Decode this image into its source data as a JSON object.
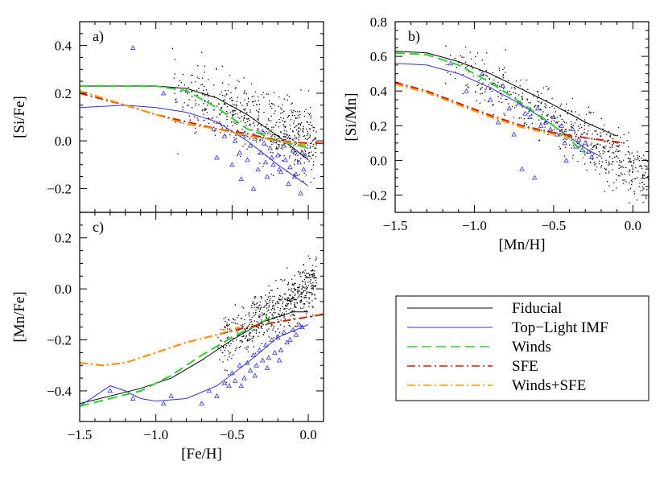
{
  "chart_data": {
    "type": "line",
    "legend": {
      "placement": "bottom-right",
      "entries": [
        {
          "key": "fiducial",
          "label": "Fiducial",
          "color": "#000000",
          "dash": "solid"
        },
        {
          "key": "toplight",
          "label": "Top−Light IMF",
          "color": "#3333dd",
          "dash": "solid"
        },
        {
          "key": "winds",
          "label": "Winds",
          "color": "#33cc33",
          "dash": "long-dash"
        },
        {
          "key": "sfe",
          "label": "SFE",
          "color": "#cc2200",
          "dash": "dash-dot"
        },
        {
          "key": "windssfe",
          "label": "Winds+SFE",
          "color": "#ff9900",
          "dash": "dash-dot"
        }
      ]
    },
    "panels": [
      {
        "id": "a",
        "label": "a)",
        "xlabel": "",
        "ylabel": "[Si/Fe]",
        "xlim": [
          -1.5,
          0.1
        ],
        "ylim": [
          -0.3,
          0.5
        ],
        "xticks": [
          -1.5,
          -1.0,
          -0.5,
          0.0
        ],
        "xtick_labels": [
          "",
          "",
          "",
          ""
        ],
        "yticks": [
          -0.2,
          0.0,
          0.2,
          0.4
        ],
        "ytick_labels": [
          "−0.2",
          "0.0",
          "0.2",
          "0.4"
        ],
        "series": {
          "fiducial": {
            "x": [
              -1.5,
              -1.2,
              -1.0,
              -0.8,
              -0.6,
              -0.4,
              -0.2,
              0.0
            ],
            "y": [
              0.23,
              0.23,
              0.23,
              0.22,
              0.18,
              0.11,
              0.02,
              -0.08
            ]
          },
          "toplight": {
            "x": [
              -1.5,
              -1.2,
              -1.0,
              -0.8,
              -0.6,
              -0.4,
              -0.2,
              0.0
            ],
            "y": [
              0.14,
              0.15,
              0.14,
              0.12,
              0.08,
              0.0,
              -0.1,
              -0.19
            ]
          },
          "winds": {
            "x": [
              -1.5,
              -1.2,
              -1.0,
              -0.8,
              -0.6,
              -0.4,
              -0.2,
              0.0
            ],
            "y": [
              0.23,
              0.23,
              0.23,
              0.21,
              0.14,
              0.05,
              0.0,
              -0.03
            ]
          },
          "sfe": {
            "x": [
              -1.5,
              -1.2,
              -1.0,
              -0.8,
              -0.6,
              -0.4,
              -0.2,
              0.0,
              0.1
            ],
            "y": [
              0.2,
              0.15,
              0.11,
              0.08,
              0.05,
              0.03,
              0.0,
              -0.01,
              -0.01
            ]
          },
          "windssfe": {
            "x": [
              -1.5,
              -1.2,
              -1.0,
              -0.8,
              -0.6,
              -0.4,
              -0.2,
              0.0
            ],
            "y": [
              0.21,
              0.15,
              0.11,
              0.07,
              0.05,
              0.02,
              0.0,
              -0.02
            ]
          }
        },
        "dwarf_points": {
          "x": [
            -1.15,
            -0.95,
            -0.62,
            -0.55,
            -0.48,
            -0.45,
            -0.42,
            -0.4,
            -0.38,
            -0.35,
            -0.33,
            -0.31,
            -0.3,
            -0.28,
            -0.27,
            -0.25,
            -0.23,
            -0.22,
            -0.2,
            -0.18,
            -0.16,
            -0.15,
            -0.13,
            -0.12,
            -0.1,
            -0.08,
            -0.06,
            -0.05,
            -0.03,
            -0.02,
            -0.5,
            -0.44,
            -0.36,
            -0.29,
            -0.24,
            -0.19,
            -0.14,
            -0.09,
            -0.04,
            -0.6
          ],
          "y": [
            0.39,
            0.2,
            0.05,
            0.02,
            0.0,
            -0.05,
            0.03,
            -0.08,
            -0.02,
            0.01,
            -0.12,
            -0.05,
            0.04,
            -0.09,
            -0.15,
            -0.03,
            -0.1,
            0.0,
            -0.06,
            -0.13,
            -0.02,
            -0.08,
            -0.18,
            -0.11,
            -0.04,
            -0.14,
            -0.09,
            -0.22,
            -0.12,
            -0.06,
            -0.1,
            -0.16,
            -0.2,
            -0.01,
            -0.07,
            -0.12,
            0.02,
            -0.15,
            -0.05,
            -0.07
          ]
        },
        "field_points": {
          "n": 600,
          "x_range": [
            -0.9,
            0.05
          ],
          "center_y": [
            0.2,
            0.0
          ],
          "spread": 0.07
        }
      },
      {
        "id": "b",
        "label": "b)",
        "xlabel": "[Mn/H]",
        "ylabel": "[Si/Mn]",
        "xlim": [
          -1.5,
          0.1
        ],
        "ylim": [
          -0.3,
          0.8
        ],
        "xticks": [
          -1.5,
          -1.0,
          -0.5,
          0.0
        ],
        "xtick_labels": [
          "−1.5",
          "−1.0",
          "−0.5",
          "0.0"
        ],
        "yticks": [
          -0.2,
          0.0,
          0.2,
          0.4,
          0.6,
          0.8
        ],
        "ytick_labels": [
          "−0.2",
          "0.0",
          "0.2",
          "0.4",
          "0.6",
          "0.8"
        ],
        "series": {
          "fiducial": {
            "x": [
              -1.5,
              -1.3,
              -1.1,
              -0.9,
              -0.7,
              -0.5,
              -0.3,
              -0.1
            ],
            "y": [
              0.63,
              0.62,
              0.57,
              0.5,
              0.41,
              0.32,
              0.22,
              0.14
            ]
          },
          "toplight": {
            "x": [
              -1.5,
              -1.3,
              -1.1,
              -0.9,
              -0.7,
              -0.5,
              -0.3,
              -0.2
            ],
            "y": [
              0.56,
              0.55,
              0.5,
              0.42,
              0.32,
              0.2,
              0.07,
              0.02
            ]
          },
          "winds": {
            "x": [
              -1.5,
              -1.3,
              -1.1,
              -0.9,
              -0.7,
              -0.5,
              -0.4,
              -0.3
            ],
            "y": [
              0.62,
              0.61,
              0.55,
              0.45,
              0.33,
              0.2,
              0.12,
              0.04
            ]
          },
          "sfe": {
            "x": [
              -1.5,
              -1.3,
              -1.1,
              -0.9,
              -0.7,
              -0.5,
              -0.3,
              -0.05
            ],
            "y": [
              0.45,
              0.4,
              0.33,
              0.26,
              0.2,
              0.16,
              0.13,
              0.1
            ]
          },
          "windssfe": {
            "x": [
              -1.5,
              -1.3,
              -1.1,
              -0.9,
              -0.7,
              -0.5,
              -0.35
            ],
            "y": [
              0.44,
              0.39,
              0.32,
              0.25,
              0.19,
              0.15,
              0.12
            ]
          }
        },
        "dwarf_points": {
          "x": [
            -1.15,
            -1.05,
            -0.95,
            -0.9,
            -0.82,
            -0.78,
            -0.72,
            -0.68,
            -0.65,
            -0.6,
            -0.58,
            -0.55,
            -0.52,
            -0.5,
            -0.48,
            -0.45,
            -0.43,
            -0.4,
            -0.38,
            -0.36,
            -0.34,
            -0.32,
            -0.3,
            -0.28,
            -0.26,
            -0.62,
            -0.7,
            -0.75,
            -0.85,
            -0.42
          ],
          "y": [
            0.56,
            0.4,
            0.5,
            0.35,
            0.43,
            0.3,
            0.33,
            0.27,
            0.25,
            0.3,
            0.2,
            0.22,
            0.18,
            0.25,
            0.15,
            0.2,
            0.1,
            0.14,
            0.18,
            0.08,
            0.12,
            0.06,
            0.1,
            0.05,
            0.02,
            -0.1,
            -0.05,
            0.15,
            0.22,
            0.0
          ]
        },
        "field_points": {
          "n": 600,
          "x_range": [
            -1.2,
            0.1
          ],
          "center_y": [
            0.6,
            -0.1
          ],
          "spread": 0.08
        }
      },
      {
        "id": "c",
        "label": "c)",
        "xlabel": "[Fe/H]",
        "ylabel": "[Mn/Fe]",
        "xlim": [
          -1.5,
          0.1
        ],
        "ylim": [
          -0.52,
          0.3
        ],
        "xticks": [
          -1.5,
          -1.0,
          -0.5,
          0.0
        ],
        "xtick_labels": [
          "−1.5",
          "−1.0",
          "−0.5",
          "0.0"
        ],
        "yticks": [
          -0.4,
          -0.2,
          0.0,
          0.2
        ],
        "ytick_labels": [
          "−0.4",
          "−0.2",
          "0.0",
          "0.2"
        ],
        "series": {
          "fiducial": {
            "x": [
              -1.5,
              -1.3,
              -1.1,
              -0.9,
              -0.7,
              -0.5,
              -0.3,
              -0.1,
              0.0
            ],
            "y": [
              -0.45,
              -0.42,
              -0.39,
              -0.35,
              -0.28,
              -0.2,
              -0.13,
              -0.09,
              -0.09
            ]
          },
          "toplight": {
            "x": [
              -1.5,
              -1.4,
              -1.3,
              -1.2,
              -1.1,
              -1.0,
              -0.8,
              -0.6,
              -0.4,
              -0.2,
              0.0
            ],
            "y": [
              -0.46,
              -0.42,
              -0.38,
              -0.4,
              -0.43,
              -0.44,
              -0.43,
              -0.38,
              -0.29,
              -0.19,
              -0.14
            ]
          },
          "winds": {
            "x": [
              -1.5,
              -1.3,
              -1.1,
              -0.9,
              -0.7,
              -0.5,
              -0.3,
              -0.25
            ],
            "y": [
              -0.46,
              -0.43,
              -0.4,
              -0.34,
              -0.26,
              -0.19,
              -0.13,
              -0.11
            ]
          },
          "sfe": {
            "x": [
              -1.5,
              -1.35,
              -1.2,
              -1.0,
              -0.8,
              -0.6,
              -0.4,
              -0.2,
              0.0,
              0.1
            ],
            "y": [
              -0.29,
              -0.3,
              -0.29,
              -0.25,
              -0.21,
              -0.18,
              -0.15,
              -0.13,
              -0.11,
              -0.1
            ]
          },
          "windssfe": {
            "x": [
              -1.5,
              -1.35,
              -1.2,
              -1.0,
              -0.8,
              -0.6,
              -0.45
            ],
            "y": [
              -0.29,
              -0.3,
              -0.29,
              -0.25,
              -0.21,
              -0.18,
              -0.15
            ]
          }
        },
        "dwarf_points": {
          "x": [
            -1.3,
            -1.15,
            -0.95,
            -0.9,
            -0.7,
            -0.65,
            -0.6,
            -0.55,
            -0.52,
            -0.5,
            -0.48,
            -0.45,
            -0.42,
            -0.4,
            -0.38,
            -0.36,
            -0.34,
            -0.32,
            -0.3,
            -0.28,
            -0.26,
            -0.24,
            -0.22,
            -0.2,
            -0.18,
            -0.16,
            -0.14,
            -0.12,
            -0.1,
            -0.08,
            -0.06,
            -0.04,
            -0.44,
            -0.35,
            -0.27,
            -0.19
          ],
          "y": [
            -0.4,
            -0.43,
            -0.45,
            -0.42,
            -0.45,
            -0.4,
            -0.42,
            -0.37,
            -0.38,
            -0.33,
            -0.36,
            -0.3,
            -0.35,
            -0.29,
            -0.32,
            -0.26,
            -0.3,
            -0.24,
            -0.28,
            -0.22,
            -0.27,
            -0.2,
            -0.25,
            -0.19,
            -0.24,
            -0.17,
            -0.21,
            -0.2,
            -0.16,
            -0.18,
            -0.14,
            -0.15,
            -0.38,
            -0.34,
            -0.31,
            -0.28
          ]
        },
        "field_points": {
          "n": 600,
          "x_range": [
            -0.6,
            0.05
          ],
          "center_y": [
            -0.22,
            0.02
          ],
          "spread": 0.05
        }
      }
    ]
  }
}
